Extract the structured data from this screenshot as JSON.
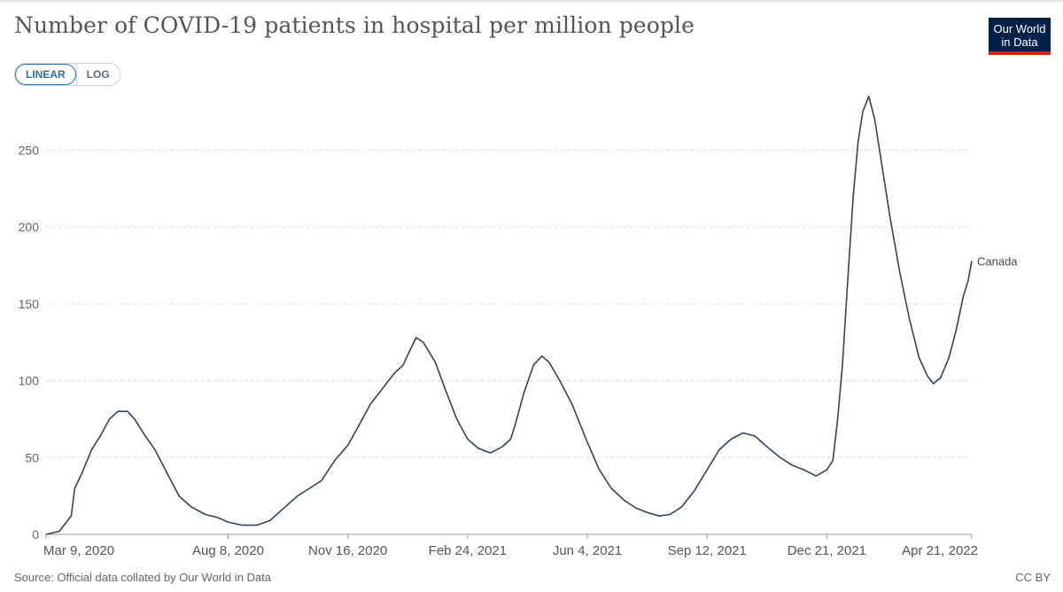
{
  "title": "Number of COVID-19 patients in hospital per million people",
  "logo": {
    "line1": "Our World",
    "line2": "in Data"
  },
  "scale_toggle": {
    "linear_label": "LINEAR",
    "log_label": "LOG",
    "selected": "LINEAR"
  },
  "source": "Source: Official data collated by Our World in Data",
  "license": "CC BY",
  "chart_data": {
    "type": "line",
    "title": "Number of COVID-19 patients in hospital per million people",
    "xlabel": "",
    "ylabel": "",
    "x_range": [
      "2020-03-09",
      "2022-04-21"
    ],
    "ylim": [
      0,
      290
    ],
    "y_ticks": [
      0,
      50,
      100,
      150,
      200,
      250
    ],
    "x_ticks": [
      {
        "date": "2020-03-09",
        "label": "Mar 9, 2020"
      },
      {
        "date": "2020-08-08",
        "label": "Aug 8, 2020"
      },
      {
        "date": "2020-11-16",
        "label": "Nov 16, 2020"
      },
      {
        "date": "2021-02-24",
        "label": "Feb 24, 2021"
      },
      {
        "date": "2021-06-04",
        "label": "Jun 4, 2021"
      },
      {
        "date": "2021-09-12",
        "label": "Sep 12, 2021"
      },
      {
        "date": "2021-12-21",
        "label": "Dec 21, 2021"
      },
      {
        "date": "2022-04-21",
        "label": "Apr 21, 2022"
      }
    ],
    "grid": true,
    "series": [
      {
        "name": "Canada",
        "color": "#34425a",
        "points": [
          [
            "2020-03-09",
            0
          ],
          [
            "2020-03-20",
            2
          ],
          [
            "2020-03-30",
            12
          ],
          [
            "2020-04-02",
            30
          ],
          [
            "2020-04-08",
            40
          ],
          [
            "2020-04-16",
            55
          ],
          [
            "2020-04-24",
            65
          ],
          [
            "2020-05-01",
            75
          ],
          [
            "2020-05-08",
            80
          ],
          [
            "2020-05-16",
            80
          ],
          [
            "2020-05-22",
            75
          ],
          [
            "2020-05-30",
            65
          ],
          [
            "2020-06-08",
            55
          ],
          [
            "2020-06-18",
            40
          ],
          [
            "2020-06-28",
            25
          ],
          [
            "2020-07-08",
            18
          ],
          [
            "2020-07-20",
            13
          ],
          [
            "2020-07-30",
            11
          ],
          [
            "2020-08-08",
            8
          ],
          [
            "2020-08-20",
            6
          ],
          [
            "2020-09-01",
            6
          ],
          [
            "2020-09-12",
            9
          ],
          [
            "2020-09-22",
            16
          ],
          [
            "2020-10-05",
            25
          ],
          [
            "2020-10-15",
            30
          ],
          [
            "2020-10-25",
            35
          ],
          [
            "2020-11-05",
            48
          ],
          [
            "2020-11-16",
            58
          ],
          [
            "2020-11-26",
            72
          ],
          [
            "2020-12-05",
            85
          ],
          [
            "2020-12-15",
            95
          ],
          [
            "2020-12-25",
            105
          ],
          [
            "2021-01-01",
            110
          ],
          [
            "2021-01-07",
            120
          ],
          [
            "2021-01-12",
            128
          ],
          [
            "2021-01-18",
            125
          ],
          [
            "2021-01-28",
            112
          ],
          [
            "2021-02-05",
            95
          ],
          [
            "2021-02-15",
            75
          ],
          [
            "2021-02-24",
            62
          ],
          [
            "2021-03-05",
            56
          ],
          [
            "2021-03-15",
            53
          ],
          [
            "2021-03-25",
            57
          ],
          [
            "2021-04-01",
            62
          ],
          [
            "2021-04-05",
            72
          ],
          [
            "2021-04-12",
            92
          ],
          [
            "2021-04-20",
            110
          ],
          [
            "2021-04-27",
            116
          ],
          [
            "2021-05-03",
            112
          ],
          [
            "2021-05-12",
            100
          ],
          [
            "2021-05-22",
            85
          ],
          [
            "2021-06-04",
            60
          ],
          [
            "2021-06-14",
            42
          ],
          [
            "2021-06-24",
            30
          ],
          [
            "2021-07-05",
            22
          ],
          [
            "2021-07-15",
            17
          ],
          [
            "2021-07-25",
            14
          ],
          [
            "2021-08-03",
            12
          ],
          [
            "2021-08-12",
            13
          ],
          [
            "2021-08-22",
            18
          ],
          [
            "2021-09-01",
            28
          ],
          [
            "2021-09-12",
            42
          ],
          [
            "2021-09-22",
            55
          ],
          [
            "2021-10-02",
            62
          ],
          [
            "2021-10-12",
            66
          ],
          [
            "2021-10-22",
            64
          ],
          [
            "2021-11-01",
            57
          ],
          [
            "2021-11-12",
            50
          ],
          [
            "2021-11-22",
            45
          ],
          [
            "2021-12-02",
            42
          ],
          [
            "2021-12-12",
            38
          ],
          [
            "2021-12-21",
            42
          ],
          [
            "2021-12-26",
            48
          ],
          [
            "2021-12-30",
            75
          ],
          [
            "2022-01-03",
            110
          ],
          [
            "2022-01-07",
            160
          ],
          [
            "2022-01-12",
            220
          ],
          [
            "2022-01-16",
            255
          ],
          [
            "2022-01-20",
            275
          ],
          [
            "2022-01-25",
            285
          ],
          [
            "2022-01-30",
            270
          ],
          [
            "2022-02-05",
            240
          ],
          [
            "2022-02-12",
            205
          ],
          [
            "2022-02-20",
            170
          ],
          [
            "2022-02-28",
            140
          ],
          [
            "2022-03-08",
            115
          ],
          [
            "2022-03-15",
            103
          ],
          [
            "2022-03-20",
            98
          ],
          [
            "2022-03-26",
            102
          ],
          [
            "2022-04-02",
            115
          ],
          [
            "2022-04-08",
            133
          ],
          [
            "2022-04-14",
            155
          ],
          [
            "2022-04-18",
            165
          ],
          [
            "2022-04-21",
            178
          ]
        ]
      }
    ],
    "legend": "line-end label, right"
  }
}
